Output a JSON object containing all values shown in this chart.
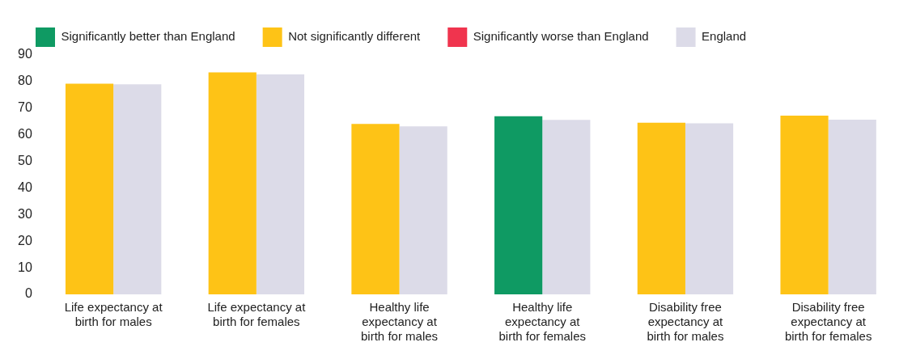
{
  "chart_data": {
    "type": "bar",
    "categories": [
      "Life expectancy at birth for males",
      "Life expectancy at birth for females",
      "Healthy life expectancy at birth for males",
      "Healthy life expectancy at birth for females",
      "Disability free expectancy at birth for males",
      "Disability free expectancy at birth for females"
    ],
    "series": [
      {
        "name": "Significantly better than England",
        "color": "#0f9a63",
        "values": [
          null,
          null,
          null,
          67.0,
          null,
          null
        ]
      },
      {
        "name": "Not significantly different",
        "color": "#fec316",
        "values": [
          79.2,
          83.5,
          64.1,
          null,
          64.5,
          67.2
        ]
      },
      {
        "name": "Significantly worse than England",
        "color": "#f0344e",
        "values": [
          null,
          null,
          null,
          null,
          null,
          null
        ]
      },
      {
        "name": "England",
        "color": "#dcdbe8",
        "values": [
          79.0,
          82.7,
          63.2,
          65.6,
          64.3,
          65.7
        ]
      }
    ],
    "ylim": [
      0,
      90
    ],
    "yticks": [
      0,
      10,
      20,
      30,
      40,
      50,
      60,
      70,
      80,
      90
    ],
    "grid": false,
    "legend": "top"
  }
}
